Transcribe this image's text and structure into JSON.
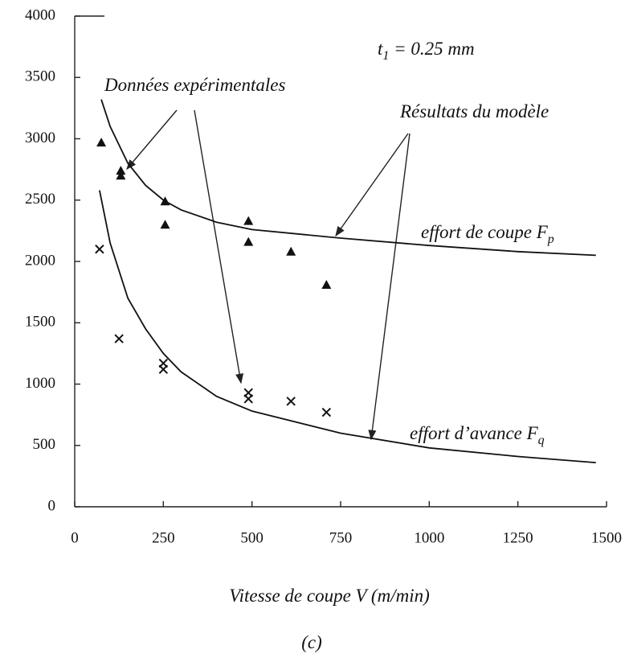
{
  "chart_data": {
    "type": "scatter",
    "xlabel": "Vitesse de coupe V (m/min)",
    "caption": "(c)",
    "xlim": [
      0,
      1500
    ],
    "xticks": [
      0,
      250,
      500,
      750,
      1000,
      1250,
      1500
    ],
    "ylim": [
      0,
      4000
    ],
    "yticks": [
      0,
      500,
      1000,
      1500,
      2000,
      2500,
      3000,
      3500,
      4000
    ],
    "annotations": [
      {
        "text": "t",
        "sub": "1",
        "rest": " = 0.25  mm"
      },
      {
        "text": "Données expérimentales"
      },
      {
        "text": "Résultats du modèle"
      },
      {
        "text": "effort de coupe F",
        "sub": "p"
      },
      {
        "text": "effort d’avance F",
        "sub": "q"
      }
    ],
    "series": [
      {
        "marker": "triangle",
        "color": "#111",
        "x": [
          75,
          130,
          130,
          255,
          255,
          490,
          490,
          610,
          710
        ],
        "values": [
          2970,
          2740,
          2700,
          2490,
          2300,
          2330,
          2160,
          2080,
          1810
        ]
      },
      {
        "marker": "cross",
        "color": "#111",
        "x": [
          70,
          125,
          250,
          250,
          490,
          490,
          610,
          710
        ],
        "values": [
          2100,
          1370,
          1170,
          1120,
          930,
          880,
          860,
          770
        ]
      },
      {
        "marker": "line",
        "color": "#111",
        "x": [
          75,
          100,
          150,
          200,
          250,
          300,
          400,
          500,
          750,
          1000,
          1250,
          1470
        ],
        "values": [
          3320,
          3100,
          2800,
          2620,
          2500,
          2420,
          2320,
          2260,
          2190,
          2130,
          2080,
          2050
        ]
      },
      {
        "marker": "line",
        "color": "#111",
        "x": [
          70,
          100,
          150,
          200,
          250,
          300,
          400,
          500,
          750,
          1000,
          1250,
          1470
        ],
        "values": [
          2580,
          2150,
          1700,
          1450,
          1250,
          1100,
          900,
          780,
          600,
          480,
          410,
          360
        ]
      }
    ]
  }
}
